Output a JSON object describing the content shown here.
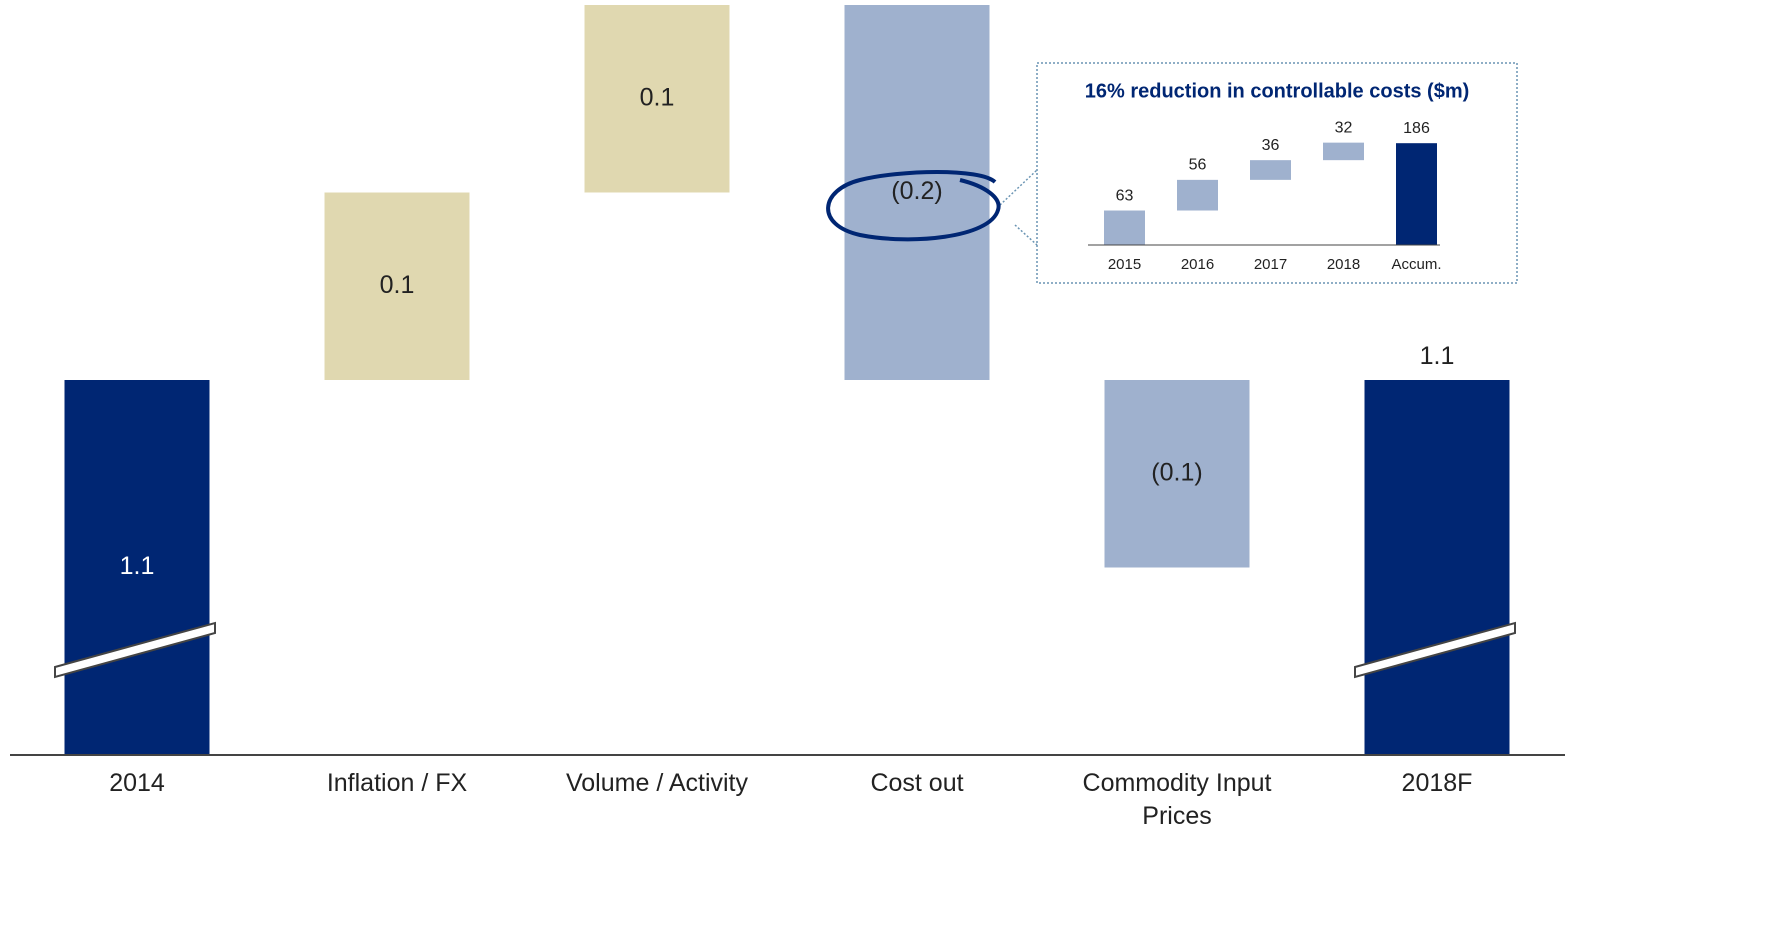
{
  "chart_data": [
    {
      "type": "waterfall",
      "categories": [
        "2014",
        "Inflation / FX",
        "Volume / Activity",
        "Cost out",
        "Commodity Input Prices",
        "2018F"
      ],
      "values": [
        1.1,
        0.1,
        0.1,
        -0.2,
        -0.1,
        1.1
      ],
      "value_labels": [
        "1.1",
        "0.1",
        "0.1",
        "(0.2)",
        "(0.1)",
        "1.1"
      ],
      "total_indices": [
        0,
        5
      ],
      "colors": [
        "#002673",
        "#e0d8b0",
        "#e0d8b0",
        "#9fb1ce",
        "#9fb1ce",
        "#002673"
      ],
      "ylim": [
        0.9,
        1.3
      ]
    },
    {
      "type": "waterfall",
      "title": "16% reduction in controllable costs ($m)",
      "categories": [
        "2015",
        "2016",
        "2017",
        "2018",
        "Accum."
      ],
      "values": [
        63,
        56,
        36,
        32,
        186
      ],
      "total_indices": [
        4
      ],
      "colors": [
        "#9fb1ce",
        "#9fb1ce",
        "#9fb1ce",
        "#9fb1ce",
        "#002673"
      ],
      "ylim": [
        0,
        190
      ]
    }
  ]
}
